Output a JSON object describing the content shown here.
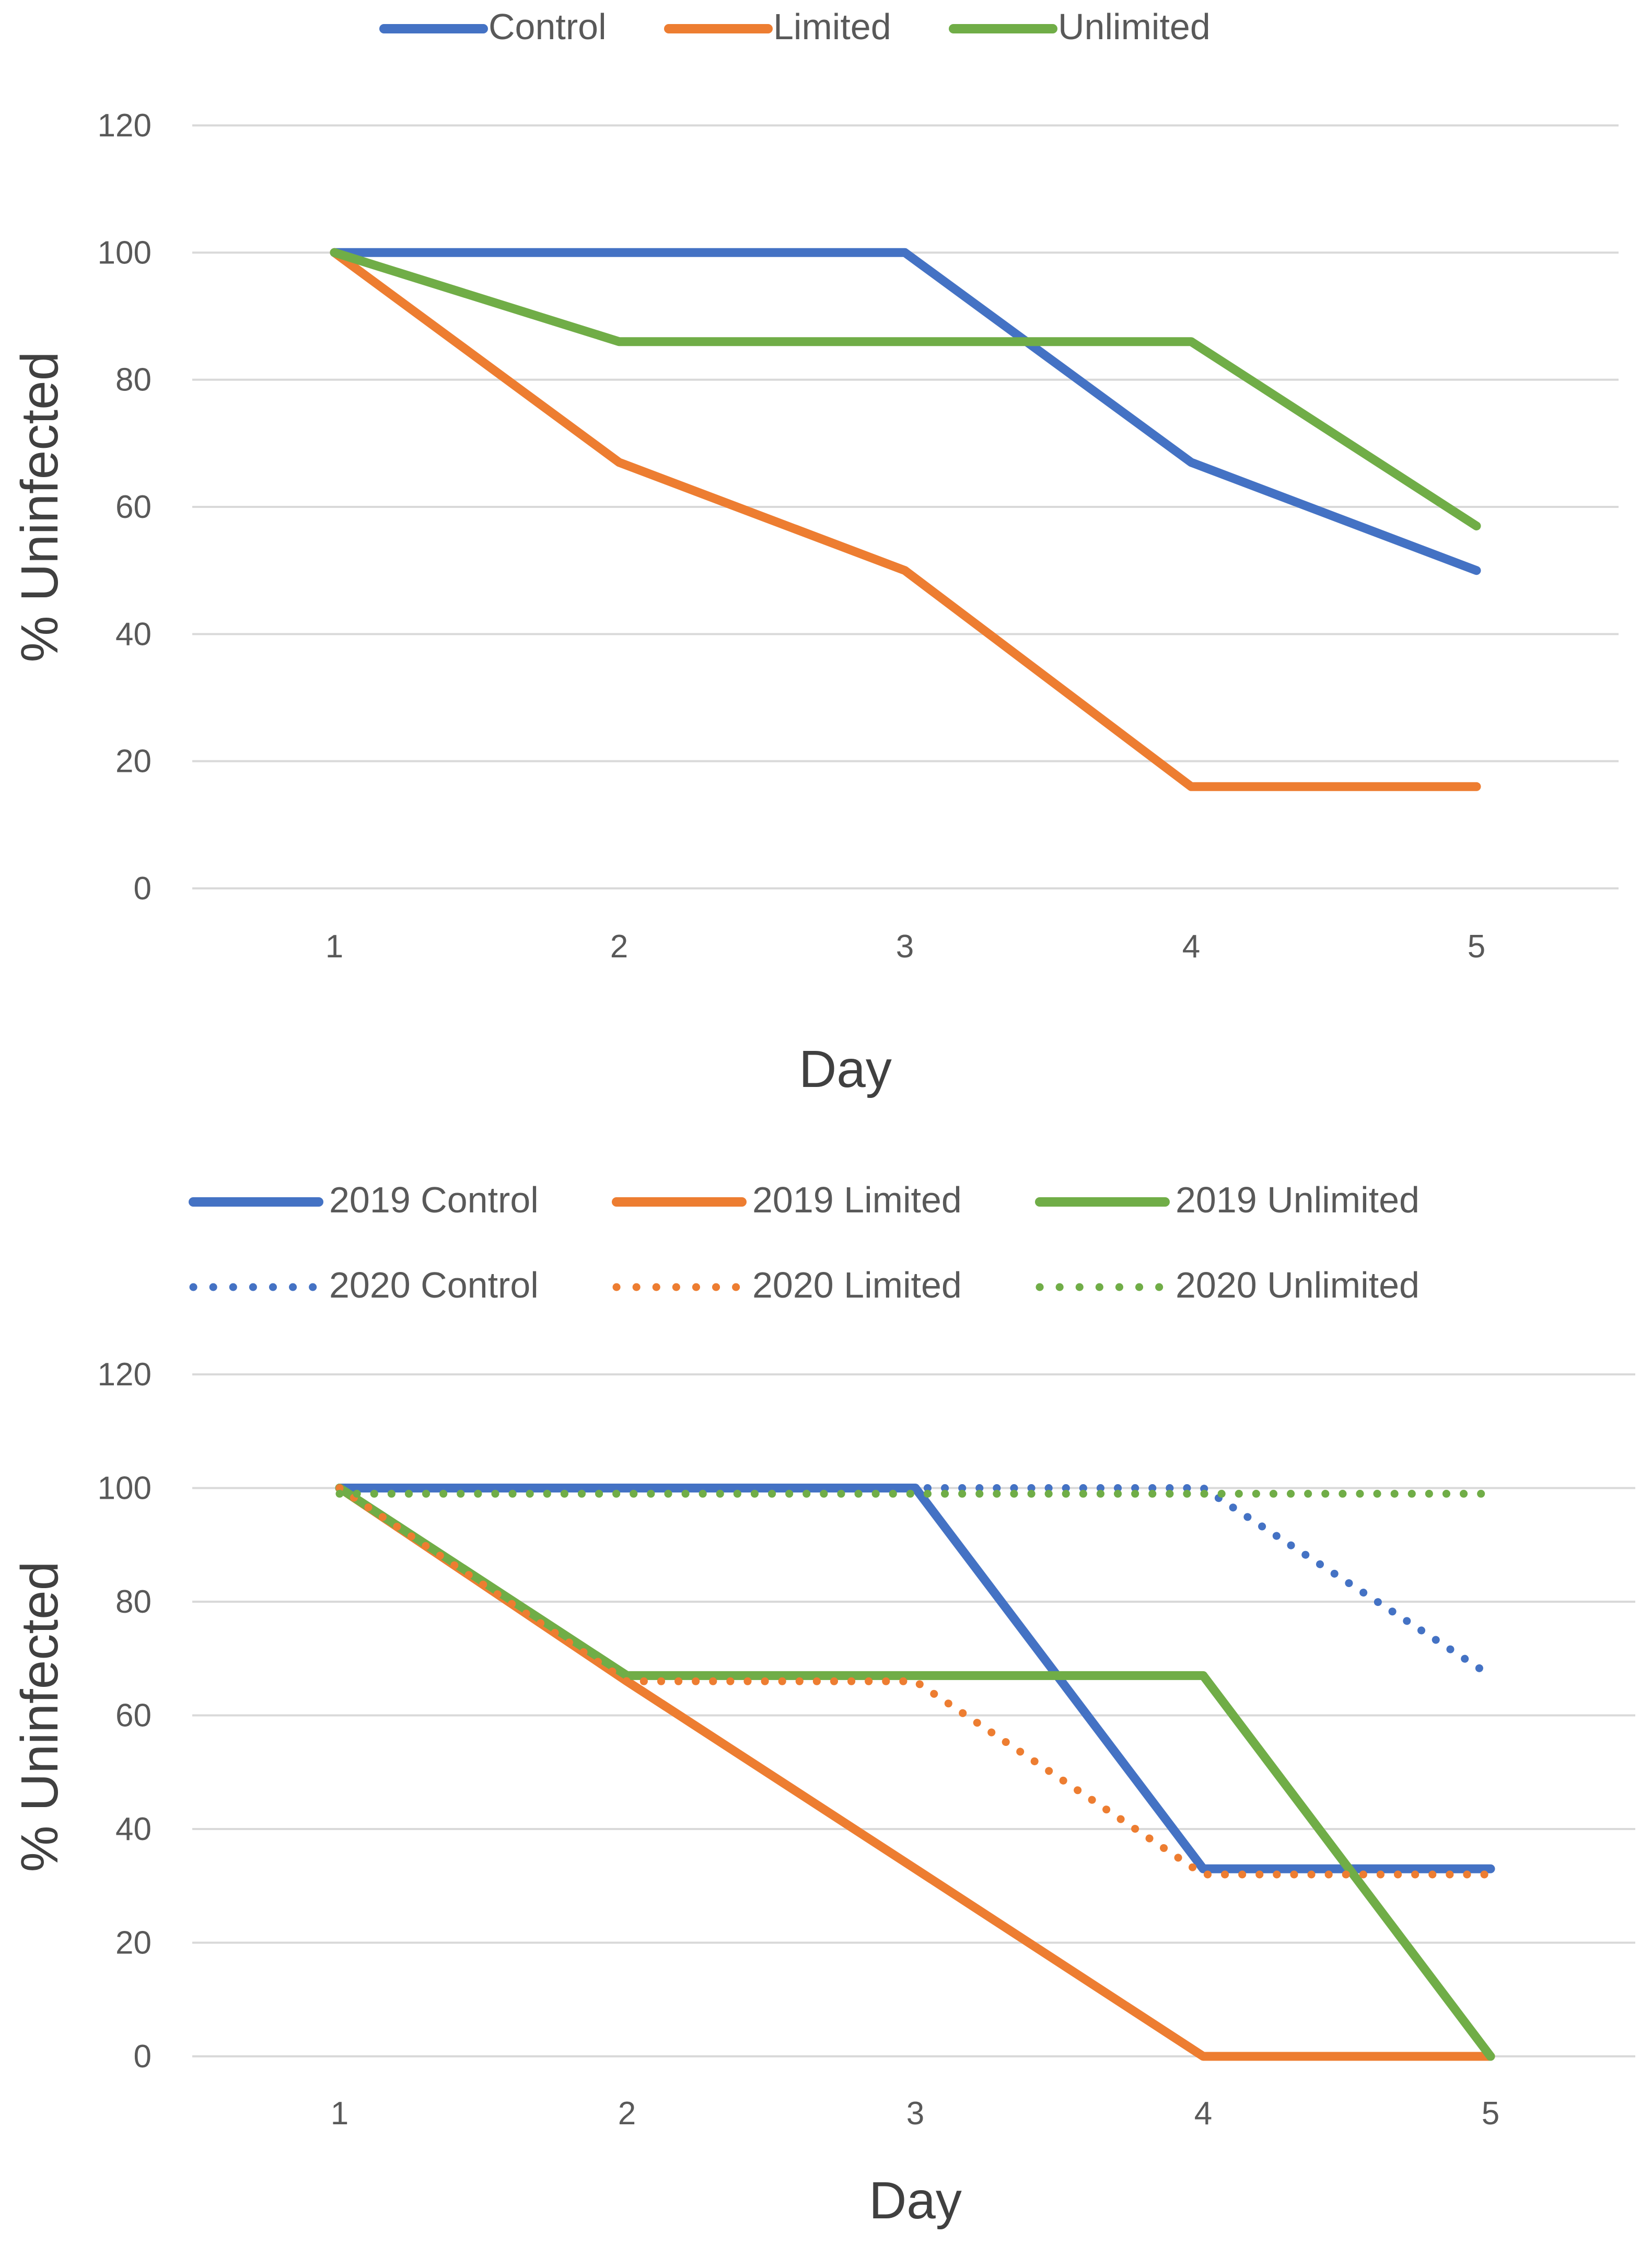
{
  "chart_data": [
    {
      "type": "line",
      "title": "",
      "xlabel": "Day",
      "ylabel": "% Uninfected",
      "categories": [
        "1",
        "2",
        "3",
        "4",
        "5"
      ],
      "ylim": [
        0,
        120
      ],
      "yticks": [
        "0",
        "20",
        "40",
        "60",
        "80",
        "100",
        "120"
      ],
      "grid": true,
      "legend_position": "top",
      "series": [
        {
          "name": "Control",
          "color": "#4472c4",
          "style": "solid",
          "values": [
            100,
            100,
            100,
            67,
            50
          ]
        },
        {
          "name": "Limited",
          "color": "#ed7d31",
          "style": "solid",
          "values": [
            100,
            67,
            50,
            16,
            16
          ]
        },
        {
          "name": "Unlimited",
          "color": "#70ad47",
          "style": "solid",
          "values": [
            100,
            86,
            86,
            86,
            57
          ]
        }
      ]
    },
    {
      "type": "line",
      "title": "",
      "xlabel": "Day",
      "ylabel": "% Uninfected",
      "categories": [
        "1",
        "2",
        "3",
        "4",
        "5"
      ],
      "ylim": [
        0,
        120
      ],
      "yticks": [
        "0",
        "20",
        "40",
        "60",
        "80",
        "100",
        "120"
      ],
      "grid": true,
      "legend_position": "top",
      "series": [
        {
          "name": "2019 Control",
          "color": "#4472c4",
          "style": "solid",
          "values": [
            100,
            100,
            100,
            33,
            33
          ]
        },
        {
          "name": "2019 Limited",
          "color": "#ed7d31",
          "style": "solid",
          "values": [
            100,
            66,
            33,
            0,
            0
          ]
        },
        {
          "name": "2019 Unlimited",
          "color": "#70ad47",
          "style": "solid",
          "values": [
            100,
            67,
            67,
            67,
            0
          ]
        },
        {
          "name": "2020 Control",
          "color": "#4472c4",
          "style": "dotted",
          "values": [
            100,
            100,
            100,
            100,
            67
          ]
        },
        {
          "name": "2020 Limited",
          "color": "#ed7d31",
          "style": "dotted",
          "values": [
            100,
            66,
            66,
            32,
            32
          ]
        },
        {
          "name": "2020 Unlimited",
          "color": "#70ad47",
          "style": "dotted",
          "values": [
            99,
            99,
            99,
            99,
            99
          ]
        }
      ]
    }
  ]
}
